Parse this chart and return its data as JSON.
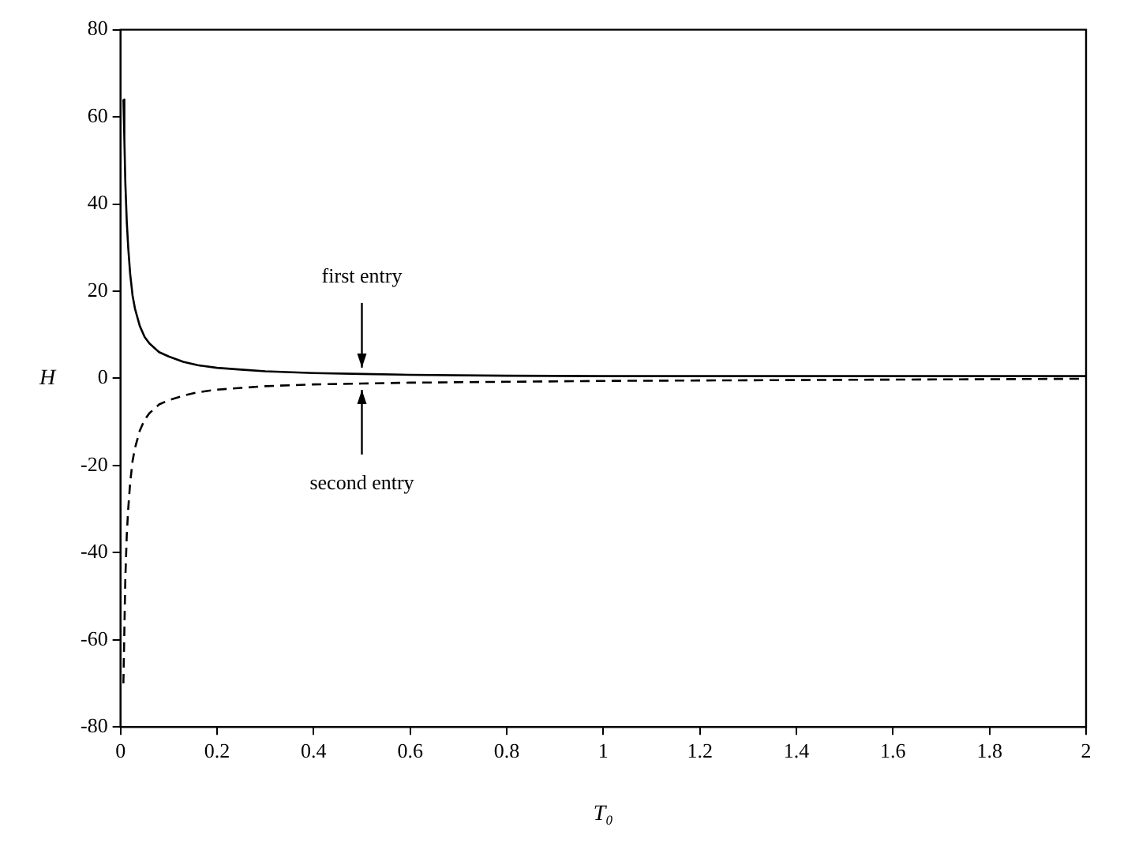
{
  "chart_data": {
    "type": "line",
    "xlabel": "T₀",
    "ylabel": "H",
    "xlim": [
      0,
      2
    ],
    "xticks": [
      0,
      0.2,
      0.4,
      0.6,
      0.8,
      1,
      1.2,
      1.4,
      1.6,
      1.8,
      2
    ],
    "ylim": [
      -80,
      80
    ],
    "yticks": [
      -80,
      -60,
      -40,
      -20,
      0,
      20,
      40,
      60,
      80
    ],
    "grid": false,
    "legend": false,
    "marker": "none",
    "series": [
      {
        "color": "#000000",
        "line_style": "solid",
        "x": [
          0.006,
          0.008,
          0.01,
          0.013,
          0.016,
          0.02,
          0.025,
          0.03,
          0.04,
          0.05,
          0.06,
          0.08,
          0.1,
          0.13,
          0.16,
          0.2,
          0.25,
          0.3,
          0.4,
          0.5,
          0.6,
          0.8,
          1,
          1.2,
          1.4,
          1.6,
          1.8,
          2
        ],
        "values": [
          64,
          55,
          45,
          36,
          30,
          24,
          19,
          16,
          12,
          9.5,
          8,
          6,
          5,
          3.8,
          3,
          2.4,
          2,
          1.6,
          1.2,
          1,
          0.8,
          0.6,
          0.5,
          0.5,
          0.5,
          0.5,
          0.5,
          0.5
        ]
      },
      {
        "color": "#000000",
        "line_style": "dashed",
        "x": [
          0.006,
          0.008,
          0.01,
          0.013,
          0.016,
          0.02,
          0.025,
          0.03,
          0.04,
          0.05,
          0.06,
          0.08,
          0.1,
          0.13,
          0.16,
          0.2,
          0.25,
          0.3,
          0.4,
          0.5,
          0.6,
          0.8,
          1,
          1.2,
          1.4,
          1.6,
          1.8,
          2
        ],
        "values": [
          -70,
          -58,
          -46,
          -36,
          -30,
          -24,
          -19,
          -16,
          -12,
          -9.5,
          -8,
          -6,
          -5,
          -4,
          -3.2,
          -2.6,
          -2.2,
          -1.8,
          -1.4,
          -1.2,
          -1,
          -0.8,
          -0.6,
          -0.5,
          -0.4,
          -0.3,
          -0.2,
          -0.1
        ]
      }
    ],
    "annotations": [
      {
        "text": "first entry",
        "x": 0.5,
        "y": 1
      },
      {
        "text": "second entry",
        "x": 0.5,
        "y": -1.2
      }
    ]
  }
}
